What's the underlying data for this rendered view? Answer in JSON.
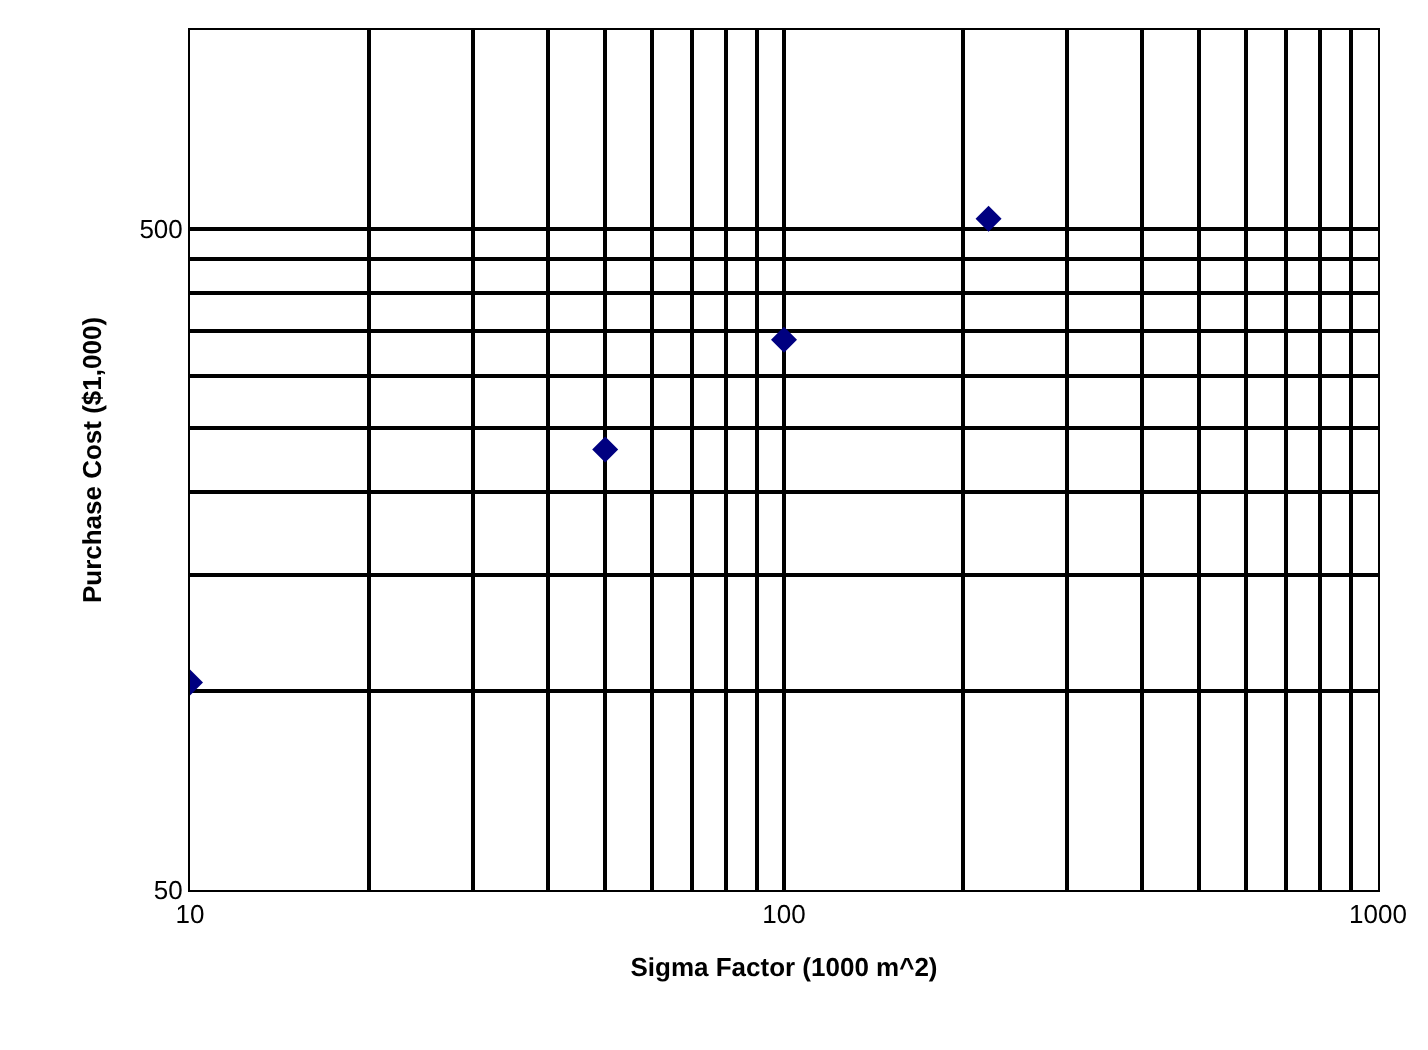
{
  "chart_data": {
    "type": "scatter",
    "xlabel": "Sigma Factor (1000 m^2)",
    "ylabel": "Purchase Cost ($1,000)",
    "x": [
      10,
      50,
      100,
      221
    ],
    "values": [
      103,
      232,
      340,
      518
    ],
    "color": "#000080",
    "marker": "diamond",
    "log": "xy",
    "grid": true,
    "legend": false,
    "xlim": [
      10,
      1000
    ],
    "ylim": [
      50,
      1000
    ],
    "xticks": [
      10,
      {
        "value": 20,
        "label": null
      },
      {
        "value": 30,
        "label": null
      },
      {
        "value": 40,
        "label": null
      },
      {
        "value": 50,
        "label": null
      },
      {
        "value": 60,
        "label": null
      },
      {
        "value": 70,
        "label": null
      },
      {
        "value": 80,
        "label": null
      },
      {
        "value": 90,
        "label": null
      },
      100,
      {
        "value": 200,
        "label": null
      },
      {
        "value": 300,
        "label": null
      },
      {
        "value": 400,
        "label": null
      },
      {
        "value": 500,
        "label": null
      },
      {
        "value": 600,
        "label": null
      },
      {
        "value": 700,
        "label": null
      },
      {
        "value": 800,
        "label": null
      },
      {
        "value": 900,
        "label": null
      },
      1000
    ],
    "yticks": [
      50,
      {
        "value": 100,
        "label": null
      },
      {
        "value": 150,
        "label": null
      },
      {
        "value": 200,
        "label": null
      },
      {
        "value": 250,
        "label": null
      },
      {
        "value": 300,
        "label": null
      },
      {
        "value": 350,
        "label": null
      },
      {
        "value": 400,
        "label": null
      },
      {
        "value": 450,
        "label": null
      },
      500
    ]
  }
}
